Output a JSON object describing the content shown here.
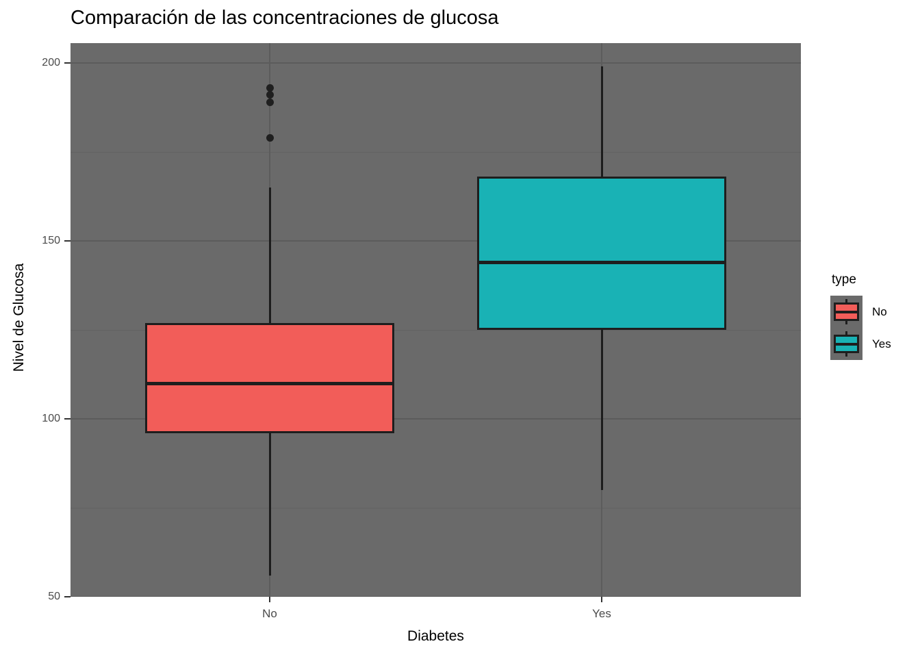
{
  "title": "Comparación de las concentraciones de glucosa",
  "chart_data": {
    "type": "boxplot",
    "title": "Comparación de las concentraciones de glucosa",
    "xlabel": "Diabetes",
    "ylabel": "Nivel de Glucosa",
    "categories": [
      "No",
      "Yes"
    ],
    "y_ticks": [
      50,
      100,
      150,
      200
    ],
    "y_minor_ticks": [
      75,
      125,
      175
    ],
    "ylim": [
      50,
      205.6
    ],
    "grid": "major and minor horizontal, major vertical at categories",
    "panel_background": "#6A6A6A",
    "series": [
      {
        "category": "No",
        "fill": "#F25D59",
        "whisker_low": 56,
        "q1": 96,
        "median": 110,
        "q3": 127,
        "whisker_high": 165,
        "outliers": [
          193,
          191,
          189,
          179
        ]
      },
      {
        "category": "Yes",
        "fill": "#19B2B5",
        "whisker_low": 80,
        "q1": 125,
        "median": 144,
        "q3": 168,
        "whisker_high": 199,
        "outliers": []
      }
    ],
    "legend": {
      "title": "type",
      "position": "right",
      "entries": [
        {
          "label": "No",
          "color": "#F25D59"
        },
        {
          "label": "Yes",
          "color": "#19B2B5"
        }
      ]
    }
  },
  "colors": {
    "outline": "#1E1E1E",
    "grid_major": "#5C5C5C",
    "grid_minor": "#626262",
    "tick_label": "#4A4A4A",
    "panel_bg": "#6A6A6A",
    "page_bg": "#ffffff"
  }
}
